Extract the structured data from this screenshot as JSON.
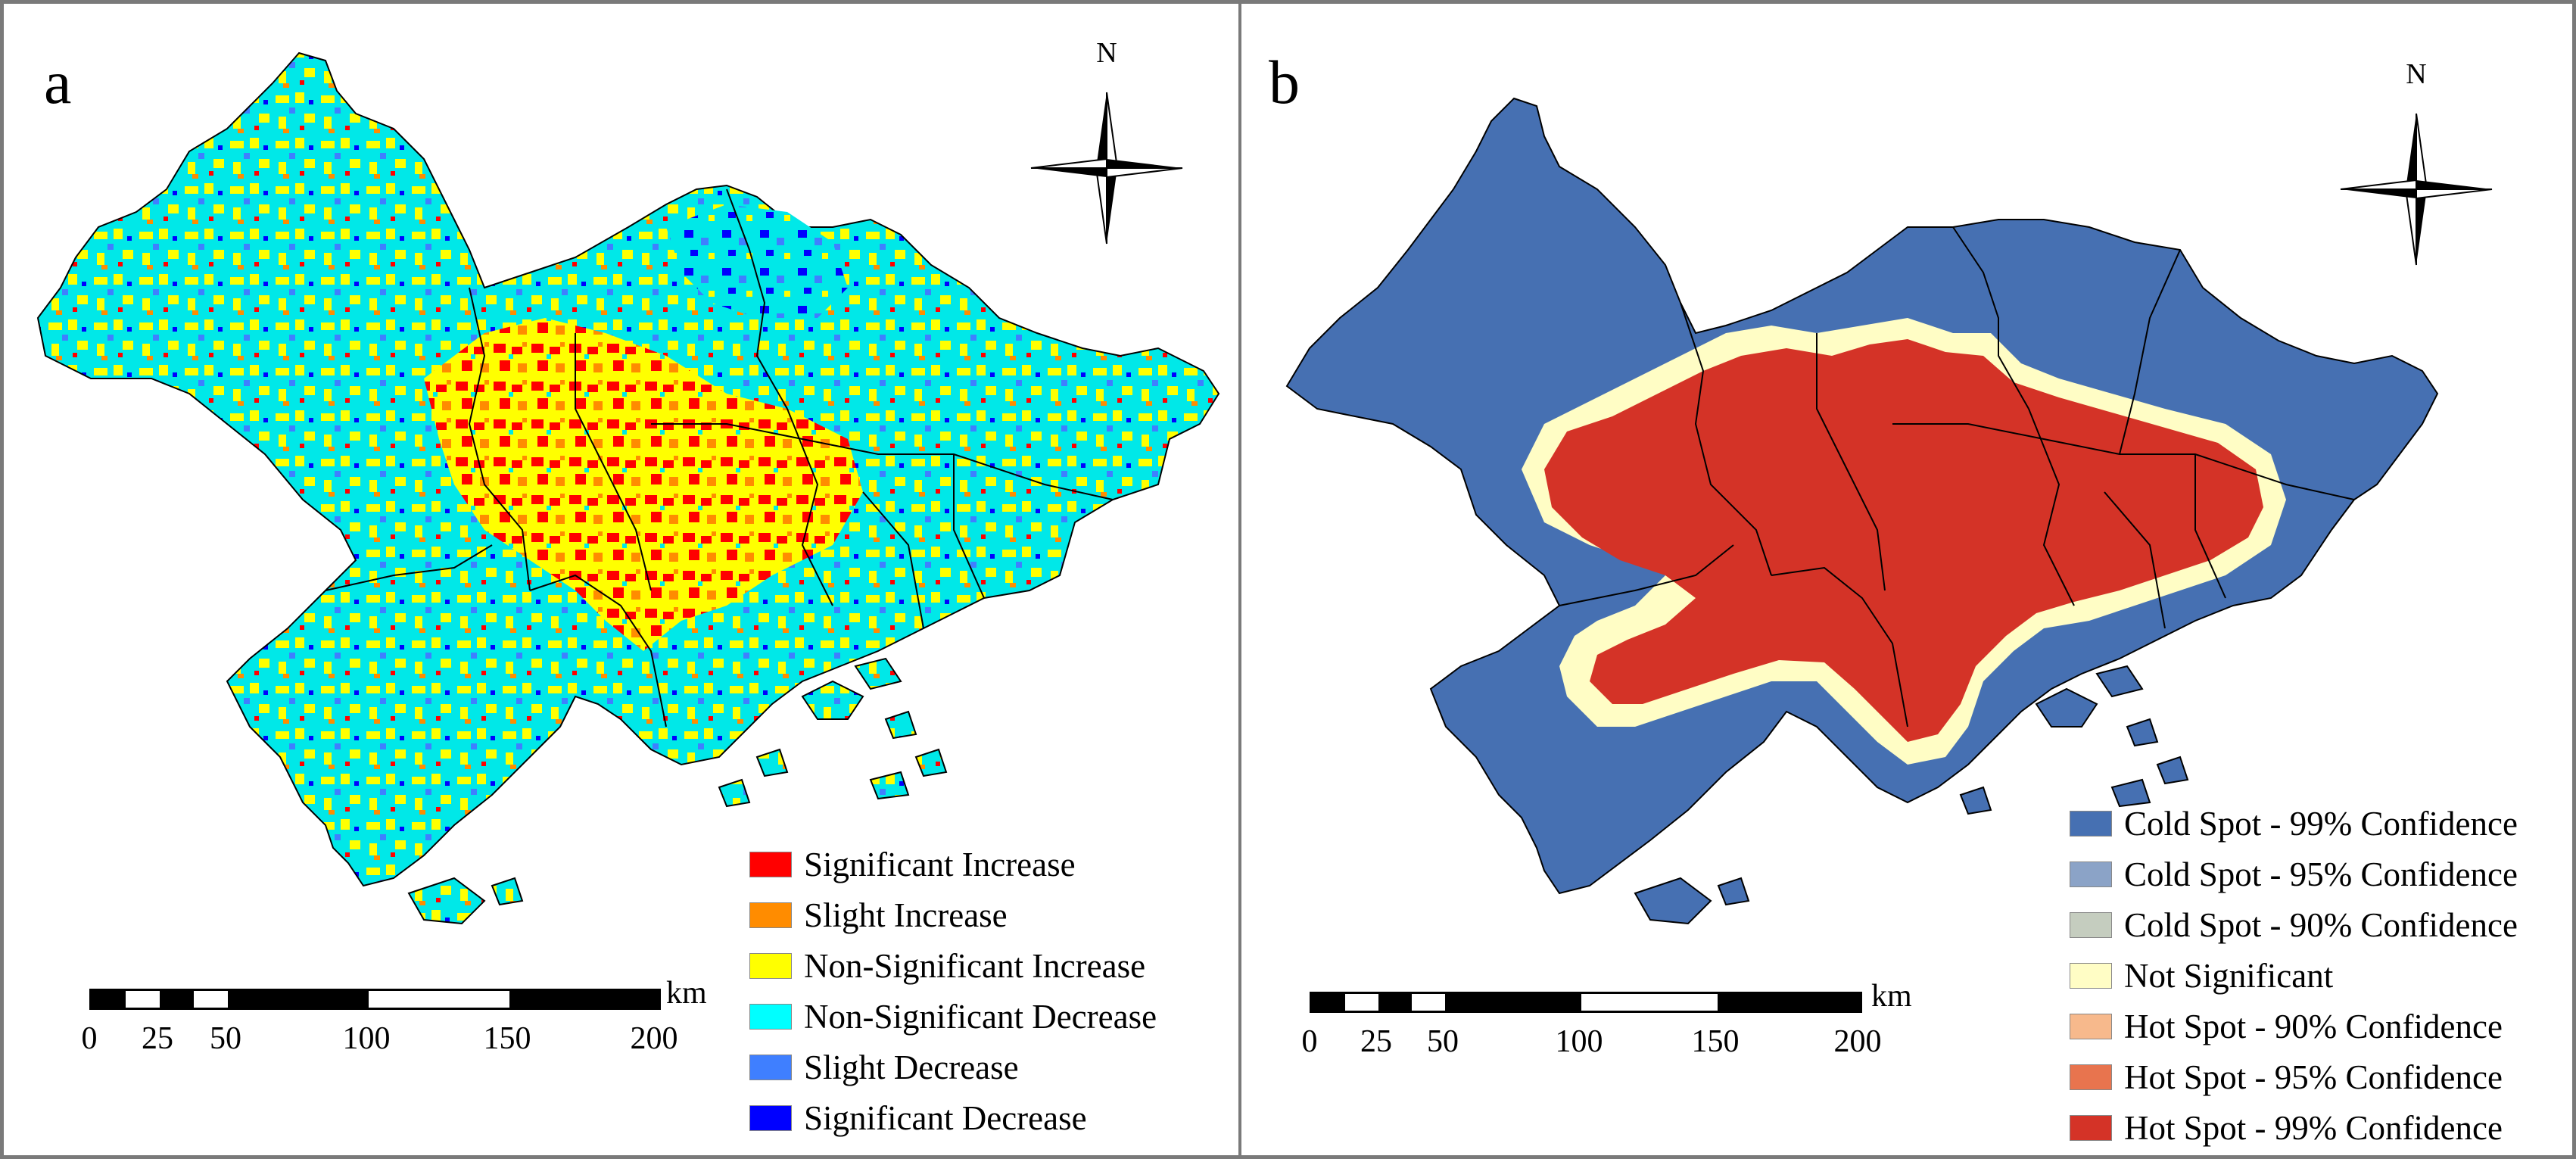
{
  "panel_a": {
    "label": "a",
    "north_label": "N",
    "legend": [
      {
        "label": "Significant Increase",
        "color": "#ff0000"
      },
      {
        "label": "Slight Increase",
        "color": "#ff8c00"
      },
      {
        "label": "Non-Significant Increase",
        "color": "#ffff00"
      },
      {
        "label": "Non-Significant Decrease",
        "color": "#00ffff"
      },
      {
        "label": "Slight Decrease",
        "color": "#3f7fff"
      },
      {
        "label": "Significant Decrease",
        "color": "#0000ff"
      }
    ],
    "scale": {
      "unit": "km",
      "ticks": [
        "0",
        "25",
        "50",
        "100",
        "150",
        "200"
      ]
    }
  },
  "panel_b": {
    "label": "b",
    "north_label": "N",
    "legend": [
      {
        "label": "Cold Spot - 99% Confidence",
        "color": "#4670b2"
      },
      {
        "label": "Cold Spot - 95% Confidence",
        "color": "#8ba3c7"
      },
      {
        "label": "Cold Spot - 90% Confidence",
        "color": "#c5cdbf"
      },
      {
        "label": "Not Significant",
        "color": "#fffdc5"
      },
      {
        "label": "Hot Spot - 90% Confidence",
        "color": "#f7b98c"
      },
      {
        "label": "Hot Spot - 95% Confidence",
        "color": "#e8744e"
      },
      {
        "label": "Hot Spot - 99% Confidence",
        "color": "#d43327"
      }
    ],
    "scale": {
      "unit": "km",
      "ticks": [
        "0",
        "25",
        "50",
        "100",
        "150",
        "200"
      ]
    }
  }
}
